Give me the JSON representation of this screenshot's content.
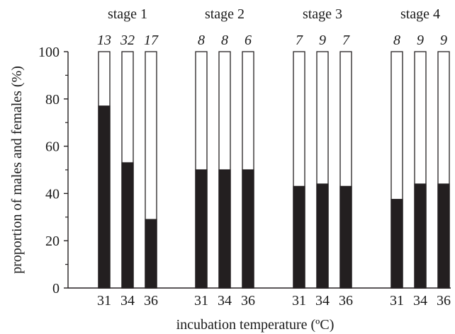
{
  "chart_data": {
    "type": "bar",
    "stacked": true,
    "xlabel": "incubation temperature (ºC)",
    "ylabel": "proportion of males and females (%)",
    "ylim": [
      0,
      100
    ],
    "yticks": [
      "0",
      "20",
      "40",
      "60",
      "80",
      "100"
    ],
    "colors": {
      "filled": "#231f20",
      "empty": "#ffffff",
      "outline": "#231f20"
    },
    "groups": [
      {
        "name": "stage 1",
        "bars": [
          {
            "temperature": "31",
            "n": "13",
            "filled_percent": 77
          },
          {
            "temperature": "34",
            "n": "32",
            "filled_percent": 53
          },
          {
            "temperature": "36",
            "n": "17",
            "filled_percent": 29
          }
        ]
      },
      {
        "name": "stage 2",
        "bars": [
          {
            "temperature": "31",
            "n": "8",
            "filled_percent": 50
          },
          {
            "temperature": "34",
            "n": "8",
            "filled_percent": 50
          },
          {
            "temperature": "36",
            "n": "6",
            "filled_percent": 50
          }
        ]
      },
      {
        "name": "stage 3",
        "bars": [
          {
            "temperature": "31",
            "n": "7",
            "filled_percent": 43
          },
          {
            "temperature": "34",
            "n": "9",
            "filled_percent": 44
          },
          {
            "temperature": "36",
            "n": "7",
            "filled_percent": 43
          }
        ]
      },
      {
        "name": "stage 4",
        "bars": [
          {
            "temperature": "31",
            "n": "8",
            "filled_percent": 37.5
          },
          {
            "temperature": "34",
            "n": "9",
            "filled_percent": 44
          },
          {
            "temperature": "36",
            "n": "9",
            "filled_percent": 44
          }
        ]
      }
    ]
  }
}
